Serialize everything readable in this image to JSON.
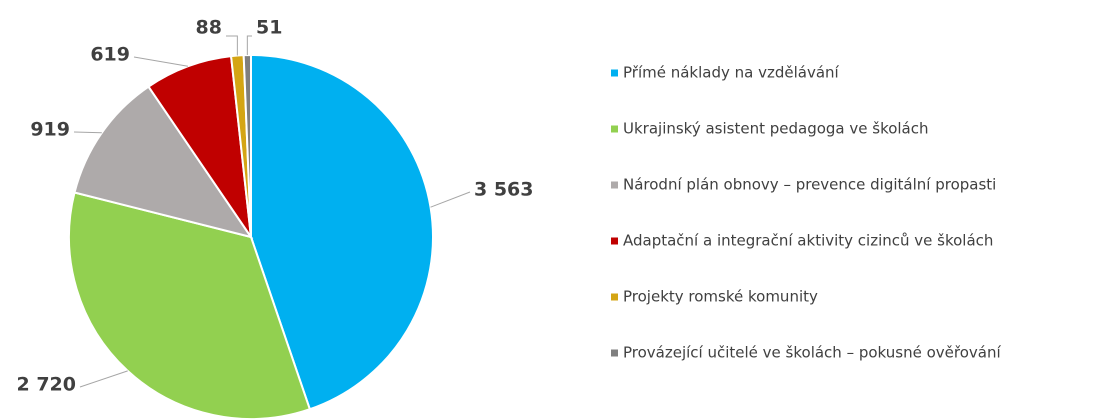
{
  "chart_data": {
    "type": "pie",
    "categories": [
      "Přímé náklady na vzdělávání",
      "Ukrajinský asistent pedagoga ve školách",
      "Národní plán obnovy – prevence digitální propasti",
      "Adaptační a integrační aktivity cizinců ve školách",
      "Projekty romské komunity",
      "Provázející učitelé ve školách – pokusné ověřování"
    ],
    "values": [
      3563,
      2720,
      919,
      619,
      88,
      51
    ],
    "value_labels": [
      "3 563",
      "2 720",
      "919",
      "619",
      "88",
      "51"
    ],
    "colors": [
      "#00b0f0",
      "#92d050",
      "#aeaaaa",
      "#c00000",
      "#d4a514",
      "#7f7f7f"
    ],
    "legend": "right"
  }
}
